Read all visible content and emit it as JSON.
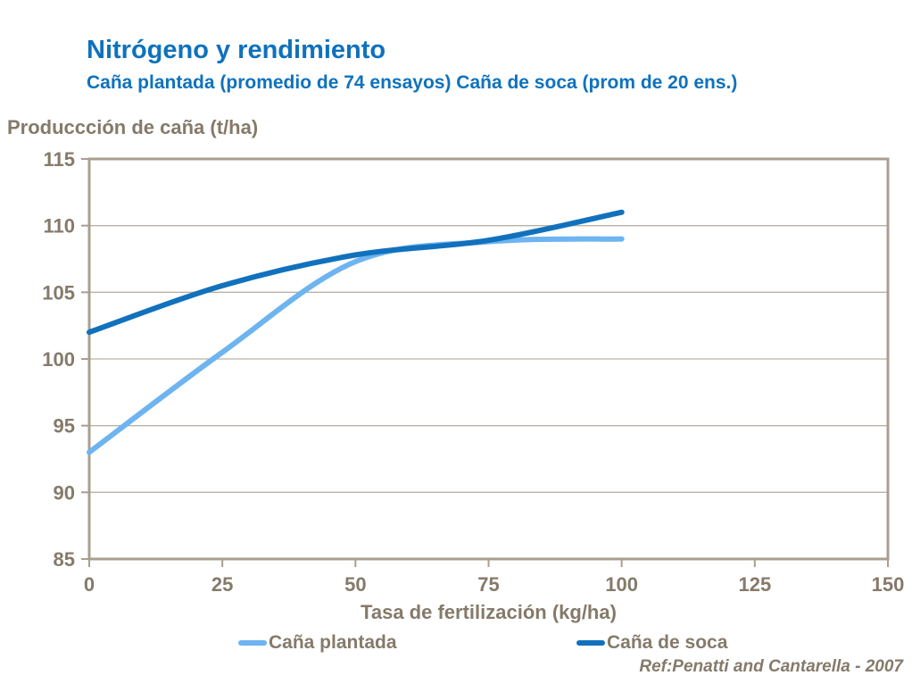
{
  "title": "Nitrógeno y rendimiento",
  "subtitle": "Caña plantada (promedio de 74 ensayos) Caña de soca (prom de 20 ens.)",
  "y_axis_title": "Produccción de caña (t/ha)",
  "x_axis_title": "Tasa de fertilización (kg/ha)",
  "reference": "Ref:Penatti and Cantarella - 2007",
  "colors": {
    "title_blue": "#0e72bd",
    "axis_text": "#857a6a",
    "axis_line": "#a89f91",
    "gridline": "#bab2a5",
    "background": "#ffffff"
  },
  "legend": [
    {
      "label": "Caña plantada",
      "color": "#6db4f0"
    },
    {
      "label": "Caña de soca",
      "color": "#1271bd"
    }
  ],
  "chart_data": {
    "type": "line",
    "title": "Nitrógeno y rendimiento",
    "subtitle": "Caña plantada (promedio de 74 ensayos) Caña de soca (prom de 20 ens.)",
    "xlabel": "Tasa de fertilización (kg/ha)",
    "ylabel": "Produccción de caña (t/ha)",
    "x": [
      0,
      25,
      50,
      75,
      100
    ],
    "series": [
      {
        "name": "Caña plantada",
        "color": "#6db4f0",
        "values": [
          93,
          100.5,
          107.3,
          108.8,
          109
        ]
      },
      {
        "name": "Caña de soca",
        "color": "#1271bd",
        "values": [
          102,
          105.5,
          107.8,
          108.9,
          111
        ]
      }
    ],
    "xlim": [
      0,
      150
    ],
    "ylim": [
      85,
      115
    ],
    "x_tick_step": 25,
    "y_tick_step": 5,
    "grid": "horizontal",
    "legend_position": "bottom",
    "annotation": "Ref:Penatti and Cantarella - 2007"
  }
}
